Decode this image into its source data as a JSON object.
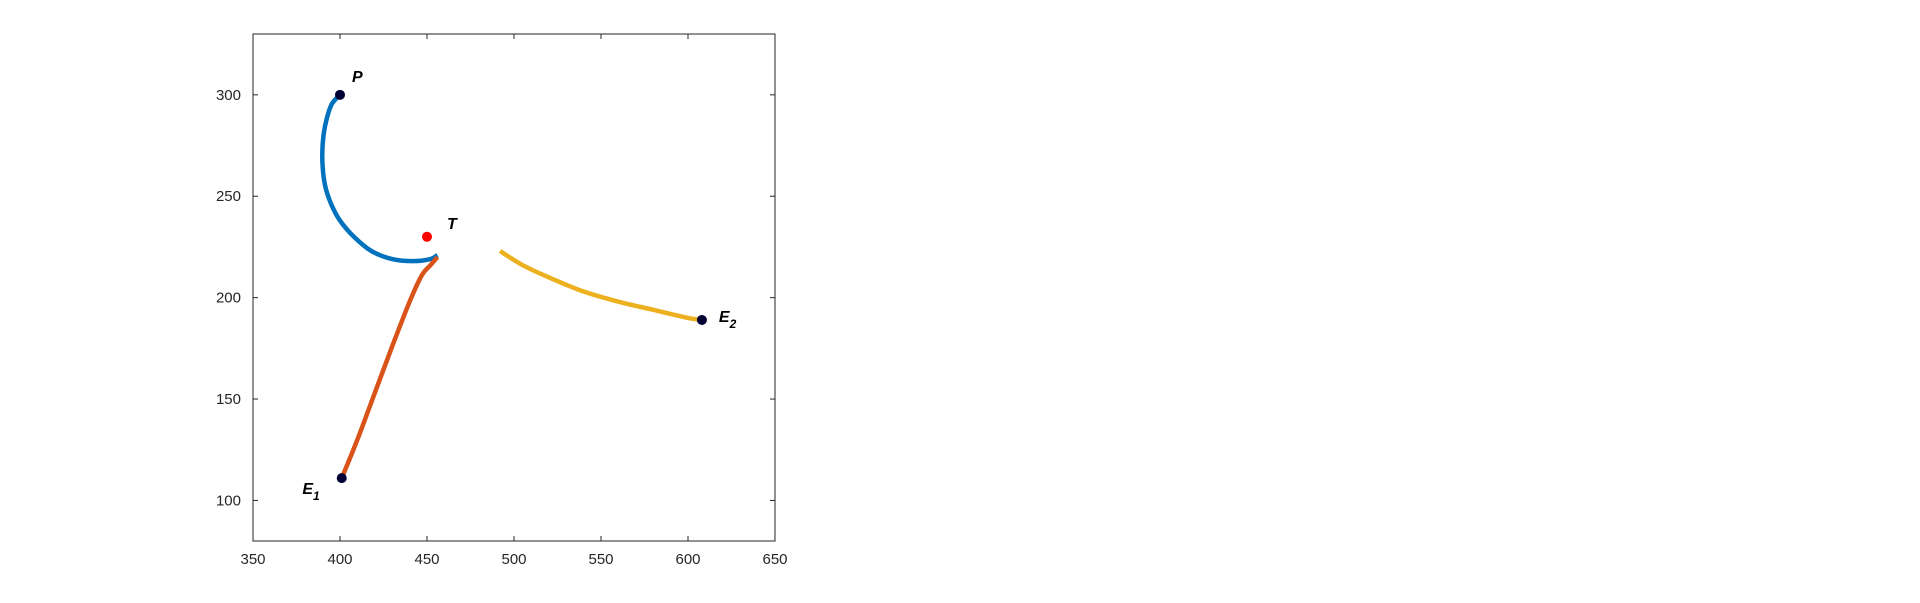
{
  "chart_data": {
    "type": "line",
    "title": "",
    "xlabel": "",
    "ylabel": "",
    "xlim": [
      350,
      650
    ],
    "ylim": [
      80,
      330
    ],
    "grid": false,
    "box": true,
    "xticks": [
      350,
      400,
      450,
      500,
      550,
      600,
      650
    ],
    "yticks": [
      100,
      150,
      200,
      250,
      300
    ],
    "series": [
      {
        "color": "#0072BD",
        "x": [
          400,
          395,
          391.5,
          390,
          390,
          391.5,
          395,
          400,
          408,
          418,
          430,
          442,
          452,
          456
        ],
        "y": [
          300,
          295,
          285,
          275,
          265,
          255,
          246,
          238,
          230,
          223,
          219,
          218,
          219,
          221
        ]
      },
      {
        "color": "#D95319",
        "x": [
          401,
          410,
          420,
          430,
          440,
          447,
          452,
          456
        ],
        "y": [
          111,
          130,
          153,
          176,
          198,
          211,
          216,
          220
        ]
      },
      {
        "color": "#EDB120",
        "x": [
          492,
          505,
          520,
          540,
          560,
          580,
          600,
          608
        ],
        "y": [
          223,
          216,
          210,
          203,
          198,
          194,
          190,
          189
        ]
      }
    ],
    "points": [
      {
        "id": "P",
        "label": "P",
        "sub": "",
        "x": 400,
        "y": 300,
        "color": "#000033"
      },
      {
        "id": "E1",
        "label": "E",
        "sub": "1",
        "x": 401,
        "y": 111,
        "color": "#000033"
      },
      {
        "id": "E2",
        "label": "E",
        "sub": "2",
        "x": 608,
        "y": 189,
        "color": "#000033"
      },
      {
        "id": "T",
        "label": "T",
        "sub": "",
        "x": 450,
        "y": 230,
        "color": "#FF0000"
      }
    ]
  }
}
